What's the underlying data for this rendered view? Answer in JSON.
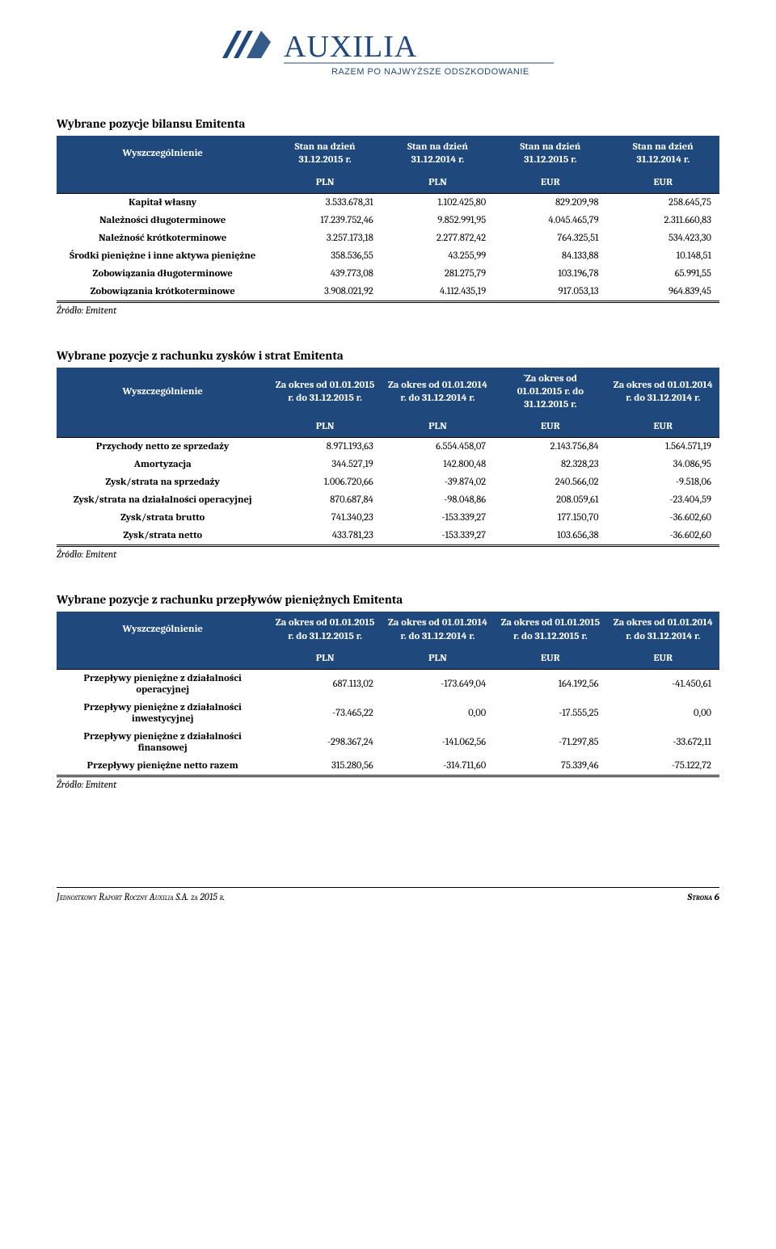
{
  "logo": {
    "brand": "AUXILIA",
    "tagline": "RAZEM PO NAJWYŻSZE ODSZKODOWANIE",
    "color": "#1f497d"
  },
  "colors": {
    "header_bg": "#1f497d",
    "header_fg": "#ffffff",
    "text": "#000000"
  },
  "table1": {
    "title": "Wybrane pozycje bilansu Emitenta",
    "col_header": "Wyszczególnienie",
    "headers": [
      "Stan na dzień 31.12.2015 r.",
      "Stan na dzień 31.12.2014 r.",
      "Stan na dzień 31.12.2015 r.",
      "Stan na dzień 31.12.2014 r."
    ],
    "units": [
      "PLN",
      "PLN",
      "EUR",
      "EUR"
    ],
    "rows": [
      {
        "label": "Kapitał własny",
        "v": [
          "3.533.678,31",
          "1.102.425,80",
          "829.209,98",
          "258.645,75"
        ]
      },
      {
        "label": "Należności długoterminowe",
        "v": [
          "17.239.752,46",
          "9.852.991,95",
          "4.045.465,79",
          "2.311.660,83"
        ]
      },
      {
        "label": "Należność krótkoterminowe",
        "v": [
          "3.257.173,18",
          "2.277.872,42",
          "764.325,51",
          "534.423,30"
        ]
      },
      {
        "label": "Środki pieniężne i inne aktywa pieniężne",
        "v": [
          "358.536,55",
          "43.255,99",
          "84.133,88",
          "10.148,51"
        ]
      },
      {
        "label": "Zobowiązania długoterminowe",
        "v": [
          "439.773,08",
          "281.275,79",
          "103.196,78",
          "65.991,55"
        ]
      },
      {
        "label": "Zobowiązania krótkoterminowe",
        "v": [
          "3.908.021,92",
          "4.112.435,19",
          "917.053,13",
          "964.839,45"
        ]
      }
    ],
    "source": "Źródło: Emitent"
  },
  "table2": {
    "title": "Wybrane pozycje z rachunku zysków i strat Emitenta",
    "col_header": "Wyszczególnienie",
    "headers": [
      "Za okres od 01.01.2015 r. do 31.12.2015 r.",
      "Za okres od 01.01.2014 r. do 31.12.2014 r.",
      "`Za okres od 01.01.2015 r. do 31.12.2015 r.",
      "Za okres od 01.01.2014 r. do 31.12.2014 r."
    ],
    "units": [
      "PLN",
      "PLN",
      "EUR",
      "EUR"
    ],
    "rows": [
      {
        "label": "Przychody netto ze sprzedaży",
        "v": [
          "8.971.193,63",
          "6.554.458,07",
          "2.143.756,84",
          "1.564.571,19"
        ]
      },
      {
        "label": "Amortyzacja",
        "v": [
          "344.527,19",
          "142.800,48",
          "82.328,23",
          "34.086,95"
        ]
      },
      {
        "label": "Zysk/strata na sprzedaży",
        "v": [
          "1.006.720,66",
          "-39.874,02",
          "240.566,02",
          "-9.518,06"
        ]
      },
      {
        "label": "Zysk/strata na działalności operacyjnej",
        "v": [
          "870.687,84",
          "-98.048,86",
          "208.059,61",
          "-23.404,59"
        ]
      },
      {
        "label": "Zysk/strata brutto",
        "v": [
          "741.340,23",
          "-153.339,27",
          "177.150,70",
          "-36.602,60"
        ]
      },
      {
        "label": "Zysk/strata netto",
        "v": [
          "433.781,23",
          "-153.339,27",
          "103.656,38",
          "-36.602,60"
        ]
      }
    ],
    "source": "Źródło: Emitent"
  },
  "table3": {
    "title": "Wybrane pozycje z rachunku przepływów pieniężnych Emitenta",
    "col_header": "Wyszczególnienie",
    "headers": [
      "Za okres od 01.01.2015 r. do 31.12.2015 r.",
      "Za okres od 01.01.2014 r. do 31.12.2014 r.",
      "Za okres od 01.01.2015 r. do 31.12.2015 r.",
      "Za okres od 01.01.2014 r. do 31.12.2014 r."
    ],
    "units": [
      "PLN",
      "PLN",
      "EUR",
      "EUR"
    ],
    "rows": [
      {
        "label": "Przepływy pieniężne z działalności operacyjnej",
        "v": [
          "687.113,02",
          "-173.649,04",
          "164.192,56",
          "-41.450,61"
        ]
      },
      {
        "label": "Przepływy pieniężne z działalności inwestycyjnej",
        "v": [
          "-73.465,22",
          "0,00",
          "-17.555,25",
          "0,00"
        ]
      },
      {
        "label": "Przepływy pieniężne z działalności finansowej",
        "v": [
          "-298.367,24",
          "-141.062,56",
          "-71.297,85",
          "-33.672,11"
        ]
      },
      {
        "label": "Przepływy pieniężne netto razem",
        "v": [
          "315.280,56",
          "-314.711,60",
          "75.339,46",
          "-75.122,72"
        ]
      }
    ],
    "source": "Źródło: Emitent"
  },
  "footer": {
    "left": "Jednostkowy Raport Roczny Auxilia S.A.  za 2015 r.",
    "right": "Strona 6"
  }
}
